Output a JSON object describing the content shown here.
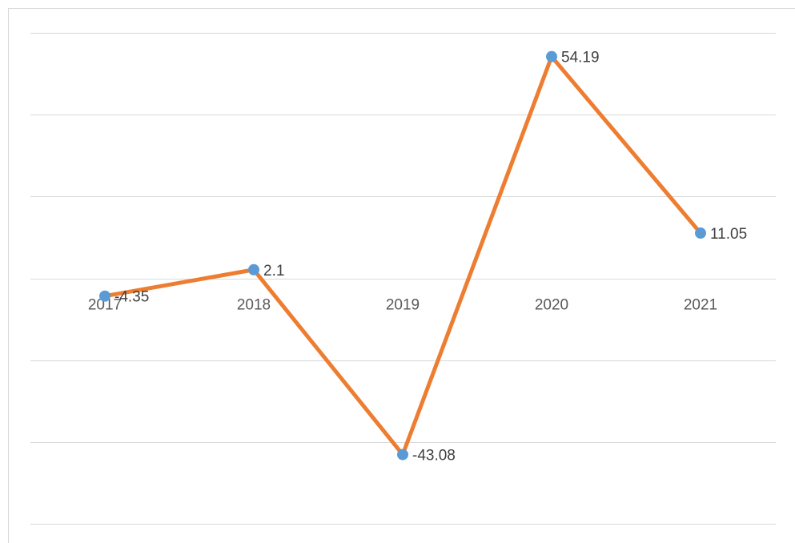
{
  "chart_data": {
    "type": "line",
    "title": "",
    "xlabel": "",
    "ylabel": "",
    "categories": [
      "2017",
      "2018",
      "2019",
      "2020",
      "2021"
    ],
    "series": [
      {
        "values": [
          -4.35,
          2.1,
          -43.08,
          54.19,
          11.05
        ]
      }
    ],
    "data_labels": [
      "-4.35",
      "2.1",
      "-43.08",
      "54.19",
      "11.05"
    ],
    "ylim": [
      -60,
      60
    ],
    "y_gridline_step": 20,
    "grid": true,
    "legend": "none",
    "colors": {
      "line": "#ed7d31",
      "marker": "#5b9bd5",
      "grid": "#d9d9d9"
    }
  }
}
